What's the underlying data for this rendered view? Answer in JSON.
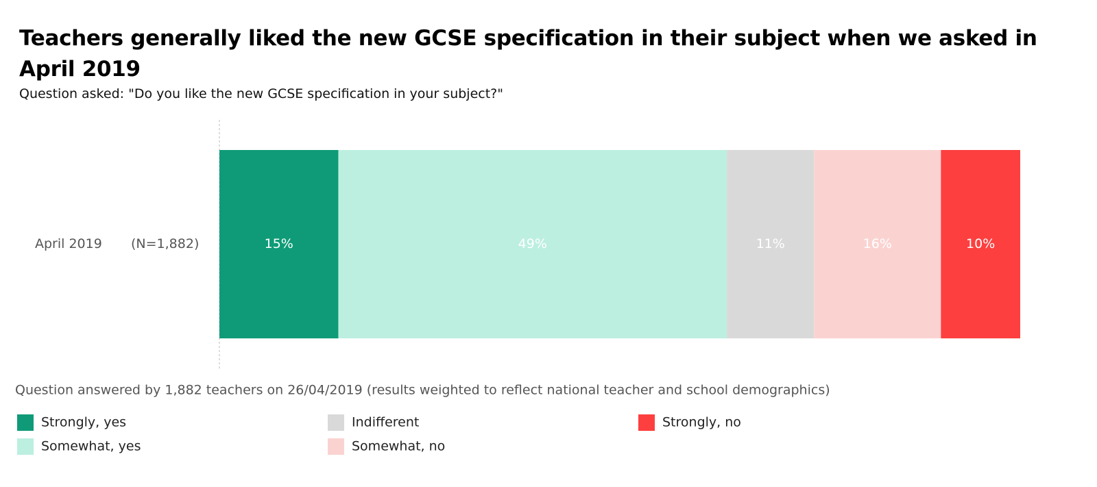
{
  "chart_data": {
    "type": "stacked-bar-horizontal",
    "title": "Teachers generally liked the new GCSE specification in their subject when we asked in April 2019",
    "subtitle": "Question asked: \"Do you like the new GCSE specification in your subject?\"",
    "categories": [
      "April 2019"
    ],
    "sample_sizes": [
      "(N=1,882)"
    ],
    "note": "Question answered by 1,882 teachers on 26/04/2019 (results weighted to reflect national teacher and school demographics)",
    "xlim": [
      0,
      101
    ],
    "series": [
      {
        "name": "Strongly, yes",
        "color": "#0f9b77",
        "label_color": "#ffffff",
        "values": [
          15
        ],
        "value_labels": [
          "15%"
        ]
      },
      {
        "name": "Somewhat, yes",
        "color": "#bcefe0",
        "label_color": "#ffffff",
        "values": [
          49
        ],
        "value_labels": [
          "49%"
        ]
      },
      {
        "name": "Indifferent",
        "color": "#d9d9d9",
        "label_color": "#ffffff",
        "values": [
          11
        ],
        "value_labels": [
          "11%"
        ]
      },
      {
        "name": "Somewhat, no",
        "color": "#fad3d1",
        "label_color": "#ffffff",
        "values": [
          16
        ],
        "value_labels": [
          "16%"
        ]
      },
      {
        "name": "Strongly, no",
        "color": "#fd3f3f",
        "label_color": "#ffffff",
        "values": [
          10
        ],
        "value_labels": [
          "10%"
        ]
      }
    ],
    "legend_rows": 2
  }
}
